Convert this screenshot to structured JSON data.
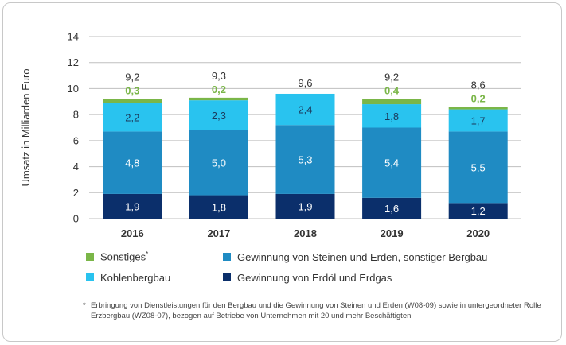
{
  "chart_data": {
    "type": "bar",
    "stacked": true,
    "categories": [
      "2016",
      "2017",
      "2018",
      "2019",
      "2020"
    ],
    "series": [
      {
        "name": "Gewinnung von Erdöl und Erdgas",
        "color": "#0b2f6b",
        "values": [
          1.9,
          1.8,
          1.9,
          1.6,
          1.2
        ],
        "labels": [
          "1,9",
          "1,8",
          "1,9",
          "1,6",
          "1,2"
        ]
      },
      {
        "name": "Gewinnung von Steinen und Erden, sonstiger Bergbau",
        "color": "#1f8bc3",
        "values": [
          4.8,
          5.0,
          5.3,
          5.4,
          5.5
        ],
        "labels": [
          "4,8",
          "5,0",
          "5,3",
          "5,4",
          "5,5"
        ]
      },
      {
        "name": "Kohlenbergbau",
        "color": "#29c3ef",
        "values": [
          2.2,
          2.3,
          2.4,
          1.8,
          1.7
        ],
        "labels": [
          "2,2",
          "2,3",
          "2,4",
          "1,8",
          "1,7"
        ]
      },
      {
        "name": "Sonstiges",
        "color": "#7ab648",
        "values": [
          0.3,
          0.2,
          0,
          0.4,
          0.2
        ],
        "labels": [
          "0,3",
          "0,2",
          "",
          "0,4",
          "0,2"
        ]
      }
    ],
    "totals": [
      9.2,
      9.3,
      9.6,
      9.2,
      8.6
    ],
    "total_labels": [
      "9,2",
      "9,3",
      "9,6",
      "9,2",
      "8,6"
    ],
    "ylabel": "Umsatz in Milliarden Euro",
    "ylim": [
      0,
      14
    ],
    "yticks": [
      "0",
      "2",
      "4",
      "6",
      "8",
      "10",
      "12",
      "14"
    ],
    "grid": true,
    "legend_position": "bottom"
  },
  "legend": [
    {
      "label": "Sonstiges",
      "footnote_mark": "*",
      "color": "#7ab648"
    },
    {
      "label": "Gewinnung von Steinen und Erden, sonstiger Bergbau",
      "color": "#1f8bc3"
    },
    {
      "label": "Kohlenbergbau",
      "color": "#29c3ef"
    },
    {
      "label": "Gewinnung von Erdöl und Erdgas",
      "color": "#0b2f6b"
    }
  ],
  "footnote": {
    "mark": "*",
    "text": "Erbringung von Dienstleistungen für den Bergbau und die Gewinnung von Steinen und Erden (W08-09) sowie in untergeordneter Rolle Erzbergbau (WZ08-07), bezogen auf Betriebe von Unternehmen mit 20 und mehr Beschäftigten"
  }
}
